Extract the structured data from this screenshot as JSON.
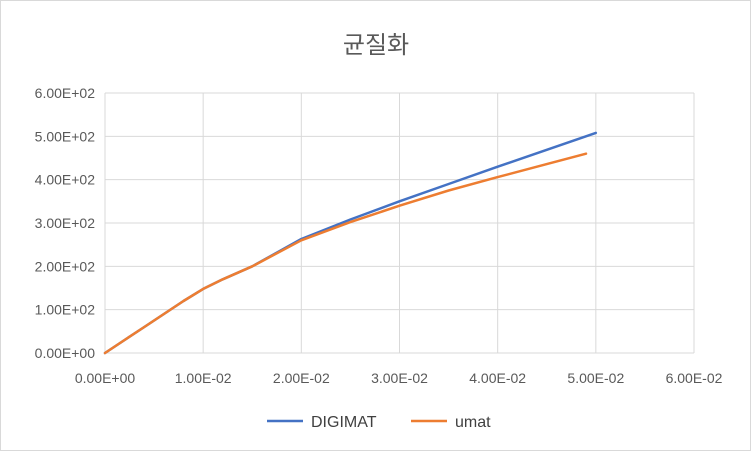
{
  "chart_data": {
    "type": "line",
    "title": "균질화",
    "xlabel": "",
    "ylabel": "",
    "xlim": [
      0,
      0.06
    ],
    "ylim": [
      0,
      600
    ],
    "x_ticks": [
      "0.00E+00",
      "1.00E-02",
      "2.00E-02",
      "3.00E-02",
      "4.00E-02",
      "5.00E-02",
      "6.00E-02"
    ],
    "y_ticks": [
      "0.00E+00",
      "1.00E+02",
      "2.00E+02",
      "3.00E+02",
      "4.00E+02",
      "5.00E+02",
      "6.00E+02"
    ],
    "grid": true,
    "legend_position": "bottom",
    "series": [
      {
        "name": "DIGIMAT",
        "color": "#4472C4",
        "x": [
          0,
          0.002,
          0.004,
          0.006,
          0.008,
          0.01,
          0.012,
          0.015,
          0.02,
          0.025,
          0.03,
          0.035,
          0.04,
          0.045,
          0.05
        ],
        "y": [
          0,
          30,
          60,
          90,
          120,
          148,
          170,
          200,
          263,
          308,
          350,
          390,
          430,
          469,
          508
        ]
      },
      {
        "name": "umat",
        "color": "#ED7D31",
        "x": [
          0,
          0.002,
          0.004,
          0.006,
          0.008,
          0.01,
          0.012,
          0.015,
          0.02,
          0.025,
          0.03,
          0.035,
          0.04,
          0.045,
          0.049
        ],
        "y": [
          0,
          30,
          60,
          90,
          120,
          148,
          170,
          200,
          260,
          302,
          340,
          375,
          406,
          436,
          460
        ]
      }
    ]
  }
}
